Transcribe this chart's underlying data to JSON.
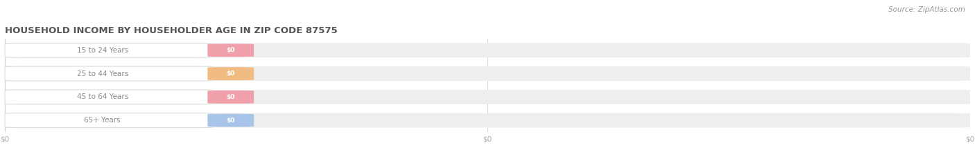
{
  "title": "HOUSEHOLD INCOME BY HOUSEHOLDER AGE IN ZIP CODE 87575",
  "source": "Source: ZipAtlas.com",
  "categories": [
    "15 to 24 Years",
    "25 to 44 Years",
    "45 to 64 Years",
    "65+ Years"
  ],
  "values": [
    0,
    0,
    0,
    0
  ],
  "bar_colors": [
    "#f0a0aa",
    "#f0bc82",
    "#f0a0aa",
    "#a8c4e8"
  ],
  "bar_bg_color": "#eeeeee",
  "bg_color": "#f8f8f8",
  "title_color": "#555555",
  "label_color": "#888888",
  "value_text_color": "#ffffff",
  "tick_label_color": "#aaaaaa",
  "source_color": "#999999",
  "figsize": [
    14.06,
    2.33
  ],
  "dpi": 100
}
